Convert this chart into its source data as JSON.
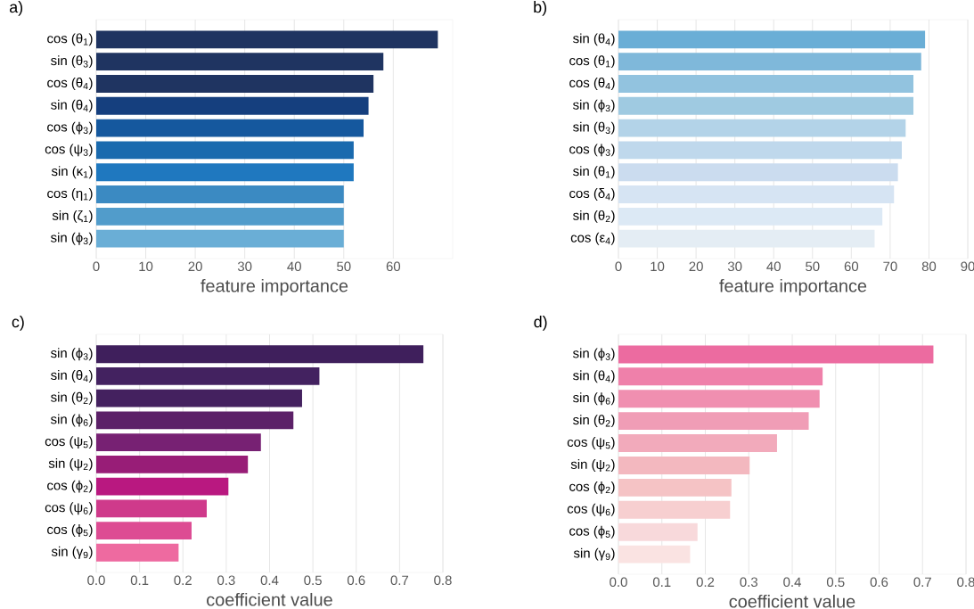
{
  "chart_data": [
    {
      "type": "bar",
      "orientation": "horizontal",
      "title": "a)",
      "xlabel": "feature importance",
      "grid": "x",
      "categories": [
        "cos (θ$_{1}$)",
        "sin (θ$_{3}$)",
        "cos (θ$_{4}$)",
        "sin (θ$_{4}$)",
        "cos (ϕ$_{3}$)",
        "cos (ψ$_{3}$)",
        "sin (κ$_{1}$)",
        "cos (η$_{1}$)",
        "sin (ζ$_{1}$)",
        "sin (ϕ$_{3}$)"
      ],
      "values": [
        69,
        58,
        56,
        55,
        54,
        52,
        52,
        50,
        50,
        50
      ],
      "colors": [
        "#1f3461",
        "#1f3461",
        "#1f3461",
        "#153f7e",
        "#15589e",
        "#1a6aae",
        "#1f78bf",
        "#3b8ac2",
        "#519ccb",
        "#6aaed6"
      ],
      "xlim": [
        0,
        72
      ],
      "xticks": [
        0,
        10,
        20,
        30,
        40,
        50,
        60
      ]
    },
    {
      "type": "bar",
      "orientation": "horizontal",
      "title": "b)",
      "xlabel": "feature importance",
      "grid": "x",
      "categories": [
        "sin (θ$_{4}$)",
        "cos (θ$_{1}$)",
        "cos (θ$_{4}$)",
        "sin (ϕ$_{3}$)",
        "sin (θ$_{3}$)",
        "cos (ϕ$_{3}$)",
        "sin (θ$_{1}$)",
        "cos (δ$_{4}$)",
        "sin (θ$_{2}$)",
        "cos (ε$_{4}$)"
      ],
      "values": [
        79,
        78,
        76,
        76,
        74,
        73,
        72,
        71,
        68,
        66
      ],
      "colors": [
        "#6aaed6",
        "#7fb8da",
        "#92c3df",
        "#9fcae1",
        "#b3d3e8",
        "#bfd8ec",
        "#cbdcef",
        "#d6e4f3",
        "#dce9f5",
        "#e4edf4"
      ],
      "xlim": [
        0,
        90
      ],
      "xticks": [
        0,
        10,
        20,
        30,
        40,
        50,
        60,
        70,
        80,
        90
      ]
    },
    {
      "type": "bar",
      "orientation": "horizontal",
      "title": "c)",
      "xlabel": "coefficient value",
      "grid": "x",
      "categories": [
        "sin (ϕ$_{3}$)",
        "sin (θ$_{4}$)",
        "sin (θ$_{2}$)",
        "sin (ϕ$_{6}$)",
        "cos (ψ$_{5}$)",
        "sin (ψ$_{2}$)",
        "cos (ϕ$_{2}$)",
        "cos (ψ$_{6}$)",
        "cos (ϕ$_{5}$)",
        "sin (γ$_{9}$)"
      ],
      "values": [
        0.755,
        0.515,
        0.475,
        0.455,
        0.38,
        0.35,
        0.305,
        0.255,
        0.22,
        0.19
      ],
      "colors": [
        "#3f1f5c",
        "#432260",
        "#44215f",
        "#5c2168",
        "#772173",
        "#981d77",
        "#b91880",
        "#cf3a8b",
        "#dd4c93",
        "#ee6aa0"
      ],
      "xlim": [
        0,
        0.8
      ],
      "xticks": [
        {
          "value": 0,
          "label": "0.0"
        },
        0.1,
        0.2,
        0.3,
        0.4,
        0.5,
        0.6,
        0.7,
        0.8
      ]
    },
    {
      "type": "bar",
      "orientation": "horizontal",
      "title": "d)",
      "xlabel": "coefficient value",
      "grid": "x",
      "categories": [
        "sin (ϕ$_{3}$)",
        "sin (θ$_{4}$)",
        "sin (ϕ$_{6}$)",
        "sin (θ$_{2}$)",
        "cos (ψ$_{5}$)",
        "sin (ψ$_{2}$)",
        "cos (ϕ$_{2}$)",
        "cos (ψ$_{6}$)",
        "cos (ϕ$_{5}$)",
        "sin (γ$_{9}$)"
      ],
      "values": [
        0.725,
        0.47,
        0.463,
        0.438,
        0.365,
        0.302,
        0.26,
        0.257,
        0.182,
        0.165
      ],
      "colors": [
        "#ec6ba0",
        "#ef80aa",
        "#f08fb0",
        "#f09db6",
        "#f2aabb",
        "#f3b8bf",
        "#f5c3c5",
        "#f7cfd0",
        "#f8d9db",
        "#fae3e2"
      ],
      "xlim": [
        0,
        0.8
      ],
      "xticks": [
        {
          "value": 0,
          "label": "0.0"
        },
        0.1,
        0.2,
        0.3,
        0.4,
        0.5,
        0.6,
        0.7,
        0.8
      ]
    }
  ]
}
